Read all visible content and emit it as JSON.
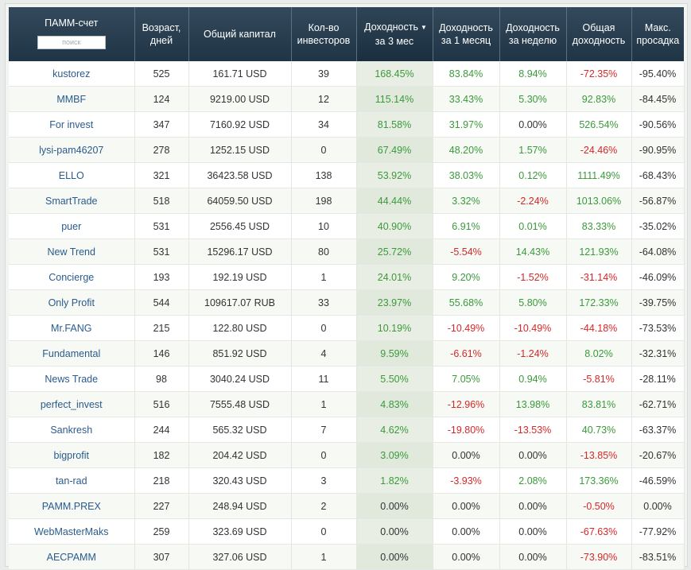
{
  "header": {
    "name": "ПАММ-счет",
    "search_placeholder": "поиск",
    "age": [
      "Возраст,",
      "дней"
    ],
    "capital": "Общий капитал",
    "investors": [
      "Кол-во",
      "инвесторов"
    ],
    "y3m": [
      "Доходность",
      "за 3 мес"
    ],
    "y1m": [
      "Доходность",
      "за 1 месяц"
    ],
    "y1w": [
      "Доходность",
      "за неделю"
    ],
    "total": [
      "Общая",
      "доходность"
    ],
    "drawdown": [
      "Макс.",
      "просадка"
    ],
    "sort_arrow": "▼"
  },
  "colors": {
    "positive": "#3a9a3a",
    "negative": "#d62828",
    "link": "#2a5b8f",
    "header": "#26394a"
  },
  "rows": [
    {
      "name": "kustorez",
      "age": "525",
      "capital": "161.71 USD",
      "investors": "39",
      "y3m": "168.45%",
      "y1m": "83.84%",
      "y1w": "8.94%",
      "total": "-72.35%",
      "drawdown": "-95.40%"
    },
    {
      "name": "MMBF",
      "age": "124",
      "capital": "9219.00 USD",
      "investors": "12",
      "y3m": "115.14%",
      "y1m": "33.43%",
      "y1w": "5.30%",
      "total": "92.83%",
      "drawdown": "-84.45%"
    },
    {
      "name": "For invest",
      "age": "347",
      "capital": "7160.92 USD",
      "investors": "34",
      "y3m": "81.58%",
      "y1m": "31.97%",
      "y1w": "0.00%",
      "total": "526.54%",
      "drawdown": "-90.56%"
    },
    {
      "name": "lysi-pam46207",
      "age": "278",
      "capital": "1252.15 USD",
      "investors": "0",
      "y3m": "67.49%",
      "y1m": "48.20%",
      "y1w": "1.57%",
      "total": "-24.46%",
      "drawdown": "-90.95%"
    },
    {
      "name": "ELLO",
      "age": "321",
      "capital": "36423.58 USD",
      "investors": "138",
      "y3m": "53.92%",
      "y1m": "38.03%",
      "y1w": "0.12%",
      "total": "1111.49%",
      "drawdown": "-68.43%"
    },
    {
      "name": "SmartTrade",
      "age": "518",
      "capital": "64059.50 USD",
      "investors": "198",
      "y3m": "44.44%",
      "y1m": "3.32%",
      "y1w": "-2.24%",
      "total": "1013.06%",
      "drawdown": "-56.87%"
    },
    {
      "name": "puer",
      "age": "531",
      "capital": "2556.45 USD",
      "investors": "10",
      "y3m": "40.90%",
      "y1m": "6.91%",
      "y1w": "0.01%",
      "total": "83.33%",
      "drawdown": "-35.02%"
    },
    {
      "name": "New Trend",
      "age": "531",
      "capital": "15296.17 USD",
      "investors": "80",
      "y3m": "25.72%",
      "y1m": "-5.54%",
      "y1w": "14.43%",
      "total": "121.93%",
      "drawdown": "-64.08%"
    },
    {
      "name": "Concierge",
      "age": "193",
      "capital": "192.19 USD",
      "investors": "1",
      "y3m": "24.01%",
      "y1m": "9.20%",
      "y1w": "-1.52%",
      "total": "-31.14%",
      "drawdown": "-46.09%"
    },
    {
      "name": "Only Profit",
      "age": "544",
      "capital": "109617.07 RUB",
      "investors": "33",
      "y3m": "23.97%",
      "y1m": "55.68%",
      "y1w": "5.80%",
      "total": "172.33%",
      "drawdown": "-39.75%"
    },
    {
      "name": "Mr.FANG",
      "age": "215",
      "capital": "122.80 USD",
      "investors": "0",
      "y3m": "10.19%",
      "y1m": "-10.49%",
      "y1w": "-10.49%",
      "total": "-44.18%",
      "drawdown": "-73.53%"
    },
    {
      "name": "Fundamental",
      "age": "146",
      "capital": "851.92 USD",
      "investors": "4",
      "y3m": "9.59%",
      "y1m": "-6.61%",
      "y1w": "-1.24%",
      "total": "8.02%",
      "drawdown": "-32.31%"
    },
    {
      "name": "News Trade",
      "age": "98",
      "capital": "3040.24 USD",
      "investors": "11",
      "y3m": "5.50%",
      "y1m": "7.05%",
      "y1w": "0.94%",
      "total": "-5.81%",
      "drawdown": "-28.11%"
    },
    {
      "name": "perfect_invest",
      "age": "516",
      "capital": "7555.48 USD",
      "investors": "1",
      "y3m": "4.83%",
      "y1m": "-12.96%",
      "y1w": "13.98%",
      "total": "83.81%",
      "drawdown": "-62.71%"
    },
    {
      "name": "Sankresh",
      "age": "244",
      "capital": "565.32 USD",
      "investors": "7",
      "y3m": "4.62%",
      "y1m": "-19.80%",
      "y1w": "-13.53%",
      "total": "40.73%",
      "drawdown": "-63.37%"
    },
    {
      "name": "bigprofit",
      "age": "182",
      "capital": "204.42 USD",
      "investors": "0",
      "y3m": "3.09%",
      "y1m": "0.00%",
      "y1w": "0.00%",
      "total": "-13.85%",
      "drawdown": "-20.67%"
    },
    {
      "name": "tan-rad",
      "age": "218",
      "capital": "320.43 USD",
      "investors": "3",
      "y3m": "1.82%",
      "y1m": "-3.93%",
      "y1w": "2.08%",
      "total": "173.36%",
      "drawdown": "-46.59%"
    },
    {
      "name": "PAMM.PREX",
      "age": "227",
      "capital": "248.94 USD",
      "investors": "2",
      "y3m": "0.00%",
      "y1m": "0.00%",
      "y1w": "0.00%",
      "total": "-0.50%",
      "drawdown": "0.00%"
    },
    {
      "name": "WebMasterMaks",
      "age": "259",
      "capital": "323.69 USD",
      "investors": "0",
      "y3m": "0.00%",
      "y1m": "0.00%",
      "y1w": "0.00%",
      "total": "-67.63%",
      "drawdown": "-77.92%"
    },
    {
      "name": "AECPAMM",
      "age": "307",
      "capital": "327.06 USD",
      "investors": "1",
      "y3m": "0.00%",
      "y1m": "0.00%",
      "y1w": "0.00%",
      "total": "-73.90%",
      "drawdown": "-83.51%"
    }
  ]
}
